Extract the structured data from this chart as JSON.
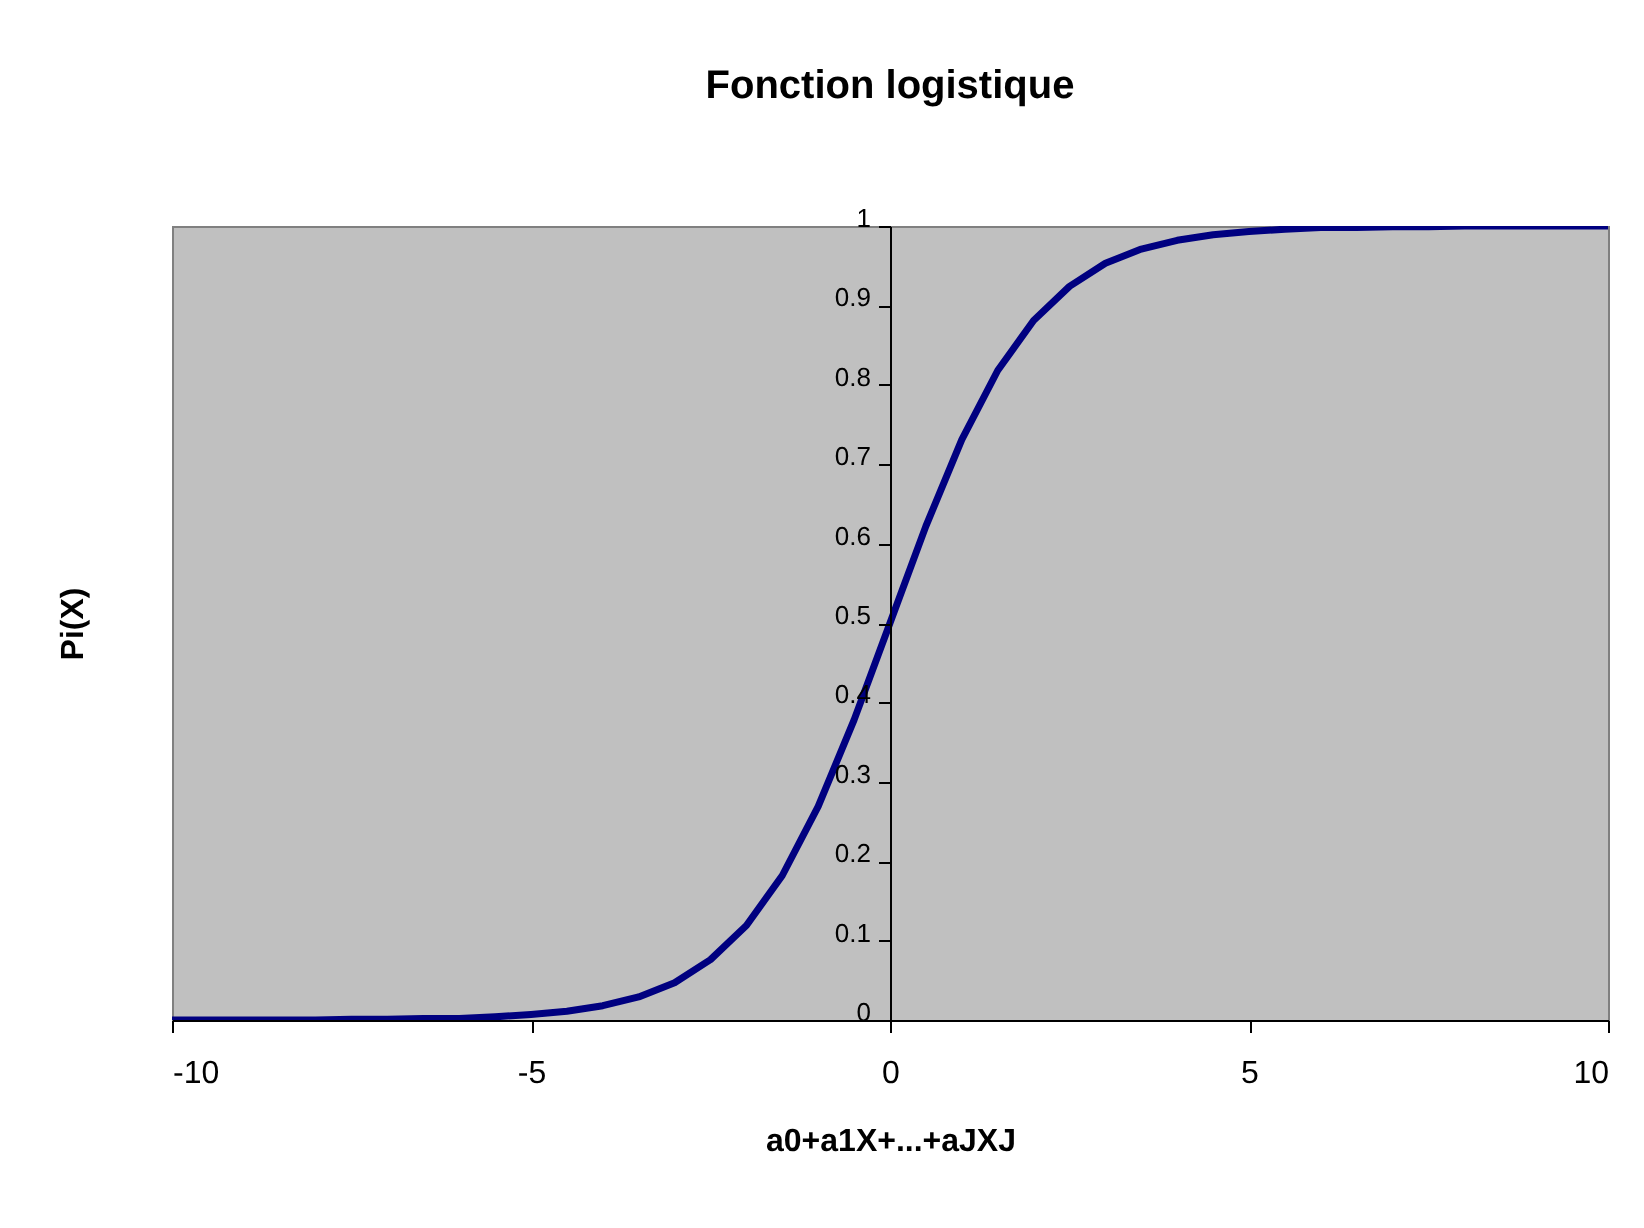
{
  "chart_data": {
    "type": "line",
    "title": "Fonction logistique",
    "xlabel": "a0+a1X+...+aJXJ",
    "ylabel": "Pi(X)",
    "x": [
      -10,
      -9.5,
      -9,
      -8.5,
      -8,
      -7.5,
      -7,
      -6.5,
      -6,
      -5.5,
      -5,
      -4.5,
      -4,
      -3.5,
      -3,
      -2.5,
      -2,
      -1.5,
      -1,
      -0.5,
      0,
      0.5,
      1,
      1.5,
      2,
      2.5,
      3,
      3.5,
      4,
      4.5,
      5,
      5.5,
      6,
      6.5,
      7,
      7.5,
      8,
      8.5,
      9,
      9.5,
      10
    ],
    "series": [
      {
        "color": "#000080",
        "values": [
          0,
          0,
          0,
          0,
          0,
          0.001,
          0.001,
          0.002,
          0.002,
          0.004,
          0.007,
          0.011,
          0.018,
          0.029,
          0.047,
          0.076,
          0.119,
          0.182,
          0.269,
          0.378,
          0.5,
          0.622,
          0.731,
          0.818,
          0.881,
          0.924,
          0.953,
          0.971,
          0.982,
          0.989,
          0.993,
          0.996,
          0.998,
          0.998,
          0.999,
          0.999,
          1,
          1,
          1,
          1,
          1
        ]
      }
    ],
    "xlim": [
      -10,
      10
    ],
    "xticks": [
      -10,
      -5,
      0,
      5,
      10
    ],
    "ylim": [
      0,
      1
    ],
    "yticks": [
      0,
      0.1,
      0.2,
      0.3,
      0.4,
      0.5,
      0.6,
      0.7,
      0.8,
      0.9,
      1
    ],
    "grid": false,
    "legend": false,
    "marker": "none",
    "line_style": "solid"
  }
}
